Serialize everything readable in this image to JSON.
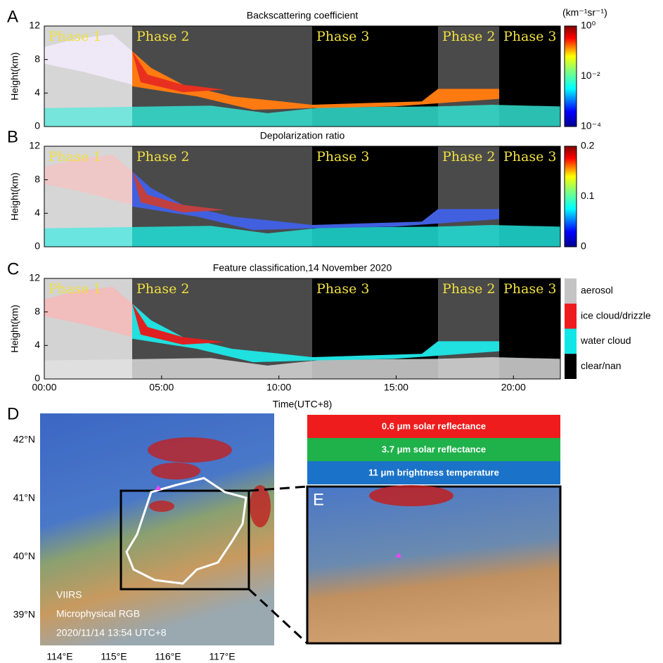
{
  "panels": [
    {
      "letter": "A",
      "title": "Backscattering coefficient",
      "ylabel": "Height(km)",
      "yticks": [
        "12",
        "8",
        "4",
        "0"
      ],
      "phases": [
        "Phase 1",
        "Phase 2",
        "Phase 3",
        "Phase 2",
        "Phase 3"
      ],
      "colorbar": {
        "unit": "(km⁻¹sr⁻¹)",
        "ticks": [
          "10⁰",
          "10⁻²",
          "10⁻⁴"
        ]
      }
    },
    {
      "letter": "B",
      "title": "Depolarization ratio",
      "ylabel": "Height(km)",
      "yticks": [
        "12",
        "8",
        "4",
        "0"
      ],
      "phases": [
        "Phase 1",
        "Phase 2",
        "Phase 3",
        "Phase 2",
        "Phase 3"
      ],
      "colorbar": {
        "ticks": [
          "0.2",
          "0.1",
          "0"
        ]
      }
    },
    {
      "letter": "C",
      "title": "Feature classification,14 November 2020",
      "ylabel": "Height(km)",
      "yticks": [
        "12",
        "8",
        "4",
        "0"
      ],
      "phases": [
        "Phase 1",
        "Phase 2",
        "Phase 3",
        "Phase 2",
        "Phase 3"
      ],
      "legend": [
        "aerosol",
        "ice cloud/drizzle",
        "water cloud",
        "clear/nan"
      ]
    }
  ],
  "xticks": [
    "00:00",
    "05:00",
    "10:00",
    "15:00",
    "20:00"
  ],
  "xlabel": "Time(UTC+8)",
  "map": {
    "letter": "D",
    "lat": [
      "42°N",
      "41°N",
      "40°N",
      "39°N"
    ],
    "lon": [
      "114°E",
      "115°E",
      "116°E",
      "117°E"
    ],
    "caption": [
      "VIIRS",
      "Microphysical RGB",
      "2020/11/14 13:54 UTC+8"
    ]
  },
  "inset": {
    "letter": "E",
    "bands": [
      "0.6 μm solar reflectance",
      "3.7 μm solar reflectance",
      "11 μm brightness temperature"
    ]
  }
}
